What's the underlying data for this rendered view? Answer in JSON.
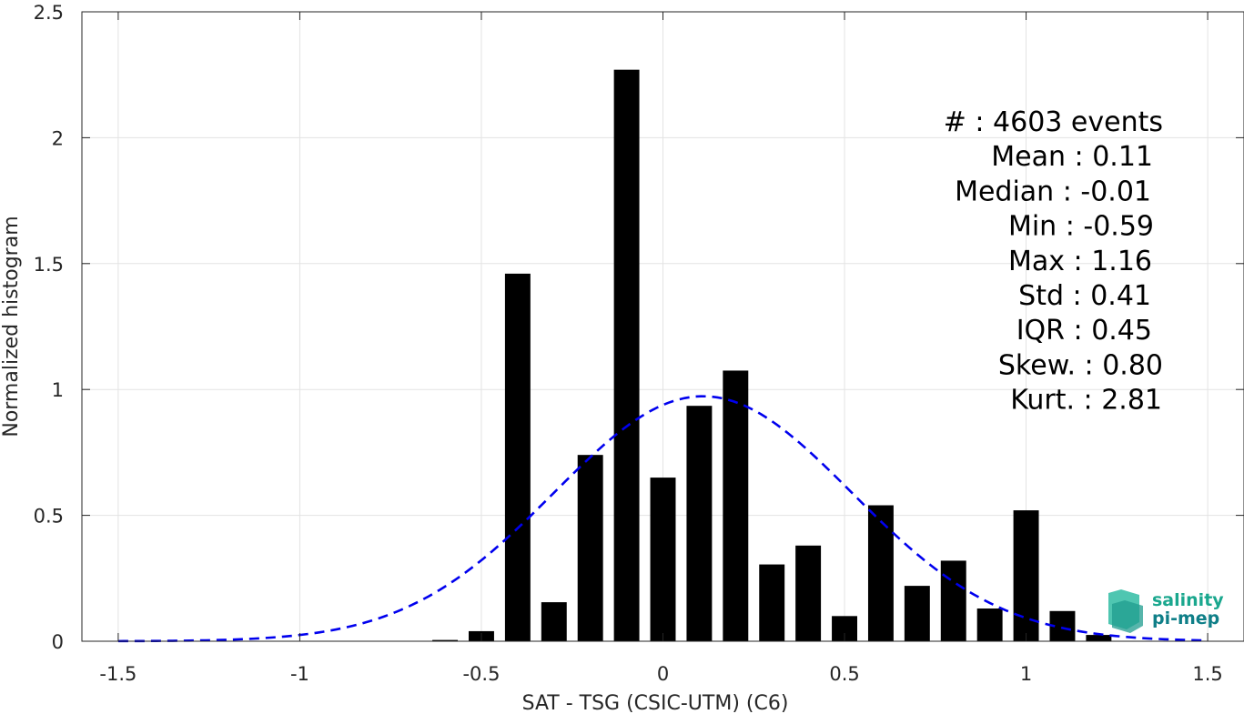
{
  "chart_data": {
    "type": "bar",
    "xlabel": "SAT - TSG (CSIC-UTM) (C6)",
    "ylabel": "Normalized histogram",
    "xlim": [
      -1.6,
      1.6
    ],
    "ylim": [
      0,
      2.5
    ],
    "xticks": [
      -1.5,
      -1,
      -0.5,
      0,
      0.5,
      1,
      1.5
    ],
    "xtick_labels": [
      "-1.5",
      "-1",
      "-0.5",
      "0",
      "0.5",
      "1",
      "1.5"
    ],
    "yticks": [
      0,
      0.5,
      1,
      1.5,
      2,
      2.5
    ],
    "ytick_labels": [
      "0",
      "0.5",
      "1",
      "1.5",
      "2",
      "2.5"
    ],
    "grid": true,
    "bar_width": 0.07,
    "bars": {
      "x": [
        -0.6,
        -0.5,
        -0.4,
        -0.3,
        -0.2,
        -0.1,
        0.0,
        0.1,
        0.2,
        0.3,
        0.4,
        0.5,
        0.6,
        0.7,
        0.8,
        0.9,
        1.0,
        1.1,
        1.2
      ],
      "values": [
        0.005,
        0.04,
        1.46,
        0.155,
        0.74,
        2.27,
        0.65,
        0.935,
        1.075,
        0.305,
        0.38,
        0.1,
        0.54,
        0.22,
        0.32,
        0.13,
        0.52,
        0.12,
        0.025
      ],
      "color": "#000000"
    },
    "gaussian_fit": {
      "mean": 0.11,
      "std": 0.41,
      "peak": 0.973,
      "x_range": [
        -1.5,
        1.5
      ],
      "color": "#0000ee",
      "style": "dashed"
    },
    "stats": [
      {
        "label": "#  : 4603 events",
        "value": ""
      },
      {
        "label": "Mean : 0.11",
        "value": ""
      },
      {
        "label": "Median : -0.01",
        "value": ""
      },
      {
        "label": "Min : -0.59",
        "value": ""
      },
      {
        "label": "Max : 1.16",
        "value": ""
      },
      {
        "label": "Std : 0.41",
        "value": ""
      },
      {
        "label": "IQR : 0.45",
        "value": ""
      },
      {
        "label": "Skew. : 0.80",
        "value": ""
      },
      {
        "label": "Kurt. : 2.81",
        "value": ""
      }
    ]
  },
  "logo": {
    "line1": "salinity",
    "line2": "pi-mep",
    "color_top": "#1aa78e",
    "color_bottom": "#0f7f88"
  }
}
